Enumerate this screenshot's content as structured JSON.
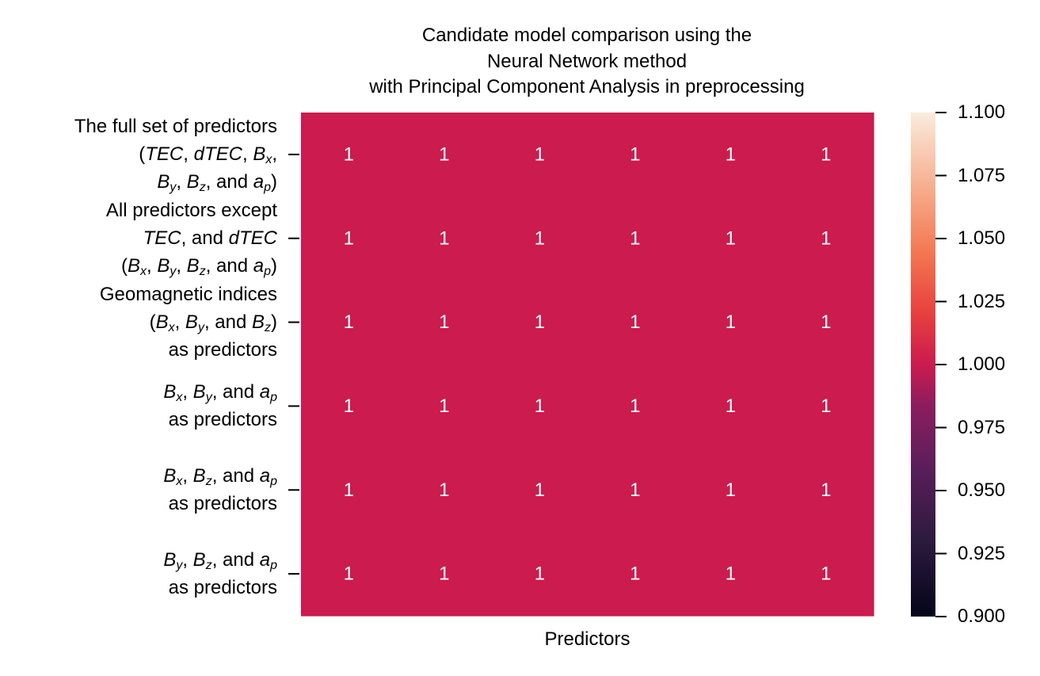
{
  "chart_data": {
    "type": "heatmap",
    "title": [
      "Candidate model comparison using the",
      "Neural Network method",
      "with Principal Component Analysis in preprocessing"
    ],
    "xlabel": "Predictors",
    "ylabel": "",
    "row_labels": [
      [
        "The full set of predictors",
        "(TEC, dTEC, Bx,",
        "By, Bz, and ap)"
      ],
      [
        "All predictors except",
        "TEC, and dTEC",
        "(Bx, By, Bz, and ap)"
      ],
      [
        "Geomagnetic indices",
        "(Bx, By, and Bz)",
        "as predictors"
      ],
      [
        "Bx, By, and ap",
        "as predictors"
      ],
      [
        "Bx, Bz, and ap",
        "as predictors"
      ],
      [
        "By, Bz, and ap",
        "as predictors"
      ]
    ],
    "values": [
      [
        1,
        1,
        1,
        1,
        1,
        1
      ],
      [
        1,
        1,
        1,
        1,
        1,
        1
      ],
      [
        1,
        1,
        1,
        1,
        1,
        1
      ],
      [
        1,
        1,
        1,
        1,
        1,
        1
      ],
      [
        1,
        1,
        1,
        1,
        1,
        1
      ],
      [
        1,
        1,
        1,
        1,
        1,
        1
      ]
    ],
    "colorbar": {
      "range": [
        0.9,
        1.1
      ],
      "ticks": [
        "1.100",
        "1.075",
        "1.050",
        "1.025",
        "1.000",
        "0.975",
        "0.950",
        "0.925",
        "0.900"
      ],
      "colormap": "rocket"
    },
    "cell_color": "#cb1b4f",
    "annotation_color": "#ffffff"
  }
}
